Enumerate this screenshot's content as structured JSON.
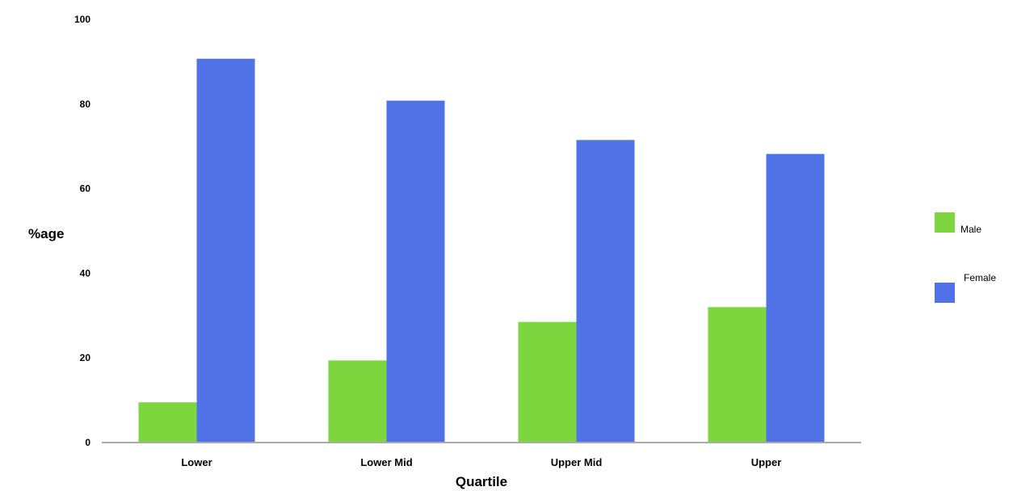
{
  "chart_data": {
    "type": "bar",
    "title": "",
    "xlabel": "Quartile",
    "ylabel": "%age",
    "categories": [
      "Lower",
      "Lower Mid",
      "Upper Mid",
      "Upper"
    ],
    "series": [
      {
        "name": "Male",
        "values": [
          9.5,
          19.4,
          28.5,
          32
        ],
        "color": "#7ed63f"
      },
      {
        "name": "Female",
        "values": [
          90.7,
          80.8,
          71.5,
          68.2
        ],
        "color": "#5072e6"
      }
    ],
    "ylim": [
      0,
      100
    ],
    "yticks": [
      0,
      20,
      40,
      60,
      80,
      100
    ],
    "grid": false,
    "legend_position": "right"
  }
}
